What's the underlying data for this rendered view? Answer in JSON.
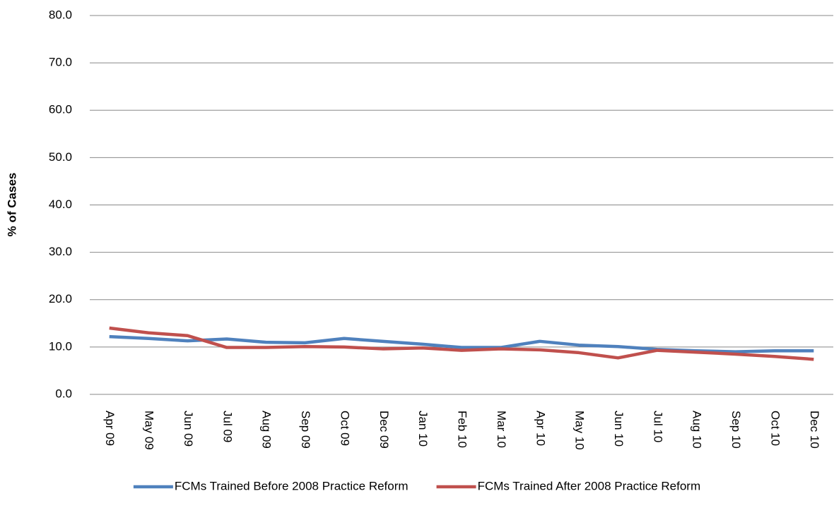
{
  "chart_data": {
    "type": "line",
    "y_label": "% of Cases",
    "categories": [
      "Apr 09",
      "May 09",
      "Jun 09",
      "Jul 09",
      "Aug 09",
      "Sep 09",
      "Oct 09",
      "Dec 09",
      "Jan 10",
      "Feb 10",
      "Mar 10",
      "Apr 10",
      "May 10",
      "Jun 10",
      "Jul 10",
      "Aug 10",
      "Sep 10",
      "Oct 10",
      "Dec 10"
    ],
    "series": [
      {
        "name": "FCMs Trained Before 2008 Practice Reform",
        "color": "#4f81bd",
        "values": [
          12.2,
          11.8,
          11.3,
          11.7,
          11.0,
          10.9,
          11.8,
          11.2,
          10.6,
          9.9,
          9.9,
          11.2,
          10.4,
          10.1,
          9.5,
          9.2,
          9.0,
          9.2,
          9.2
        ]
      },
      {
        "name": "FCMs Trained After 2008 Practice Reform",
        "color": "#c0504d",
        "values": [
          14.0,
          13.0,
          12.4,
          9.9,
          9.9,
          10.1,
          10.0,
          9.6,
          9.8,
          9.3,
          9.6,
          9.4,
          8.8,
          7.7,
          9.3,
          8.9,
          8.5,
          8.0,
          7.4
        ]
      }
    ],
    "ylim": [
      0,
      80
    ],
    "yticks": [
      {
        "value": 0,
        "label": "0.0"
      },
      {
        "value": 10,
        "label": "10.0"
      },
      {
        "value": 20,
        "label": "20.0"
      },
      {
        "value": 30,
        "label": "30.0"
      },
      {
        "value": 40,
        "label": "40.0"
      },
      {
        "value": 50,
        "label": "50.0"
      },
      {
        "value": 60,
        "label": "60.0"
      },
      {
        "value": 70,
        "label": "70.0"
      },
      {
        "value": 80,
        "label": "80.0"
      }
    ],
    "grid": true,
    "legend": "bottom"
  }
}
